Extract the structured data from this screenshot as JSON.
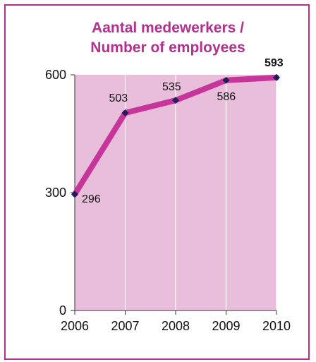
{
  "chart_data": {
    "type": "line",
    "title_line1": "Aantal medewerkers /",
    "title_line2": "Number of employees",
    "x": [
      "2006",
      "2007",
      "2008",
      "2009",
      "2010"
    ],
    "series": [
      {
        "values": [
          296,
          503,
          535,
          586,
          593
        ]
      }
    ],
    "data_labels": [
      "296",
      "503",
      "535",
      "586",
      "593"
    ],
    "highlighted_label_index": 4,
    "y_ticks": [
      "0",
      "300",
      "600"
    ],
    "ylim": [
      0,
      600
    ],
    "grid": true
  },
  "colors": {
    "border": "#b42f8e",
    "title": "#b42f8e",
    "plot_background": "#e8bedb",
    "line": "#c8359a",
    "marker": "#1f1f5c",
    "grid": "#ffffff",
    "axis": "#333333"
  }
}
